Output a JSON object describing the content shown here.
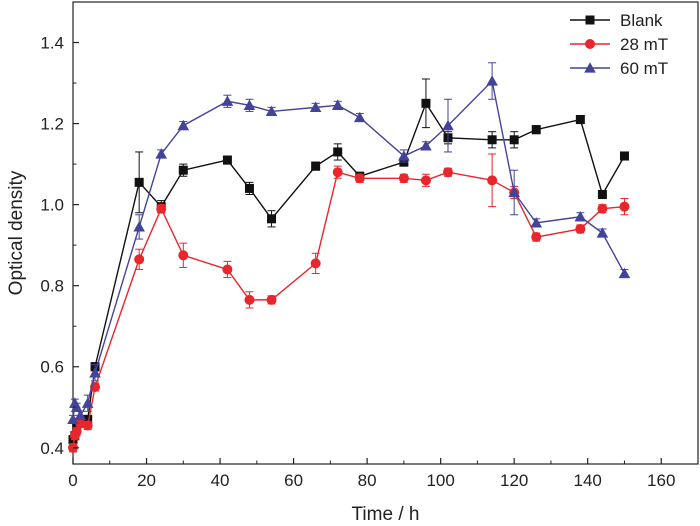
{
  "chart_data": {
    "type": "line",
    "title": "",
    "xlabel": "Time / h",
    "ylabel": "Optical density",
    "xlim": [
      0,
      170
    ],
    "ylim": [
      0.36,
      1.5
    ],
    "xticks": [
      0,
      20,
      40,
      60,
      80,
      100,
      120,
      140,
      160
    ],
    "yticks": [
      0.4,
      0.6,
      0.8,
      1.0,
      1.2,
      1.4
    ],
    "xtick_labels": [
      "0",
      "20",
      "40",
      "60",
      "80",
      "100",
      "120",
      "140",
      "160"
    ],
    "ytick_labels": [
      "0.4",
      "0.6",
      "0.8",
      "1.0",
      "1.2",
      "1.4"
    ],
    "legend_position": "top-right",
    "series": [
      {
        "name": "Blank",
        "color": "#111111",
        "marker": "square",
        "x": [
          0,
          0.5,
          1,
          2,
          4,
          6,
          18,
          24,
          30,
          42,
          48,
          54,
          66,
          72,
          78,
          90,
          96,
          102,
          114,
          120,
          126,
          138,
          144,
          150
        ],
        "y": [
          0.42,
          0.43,
          0.45,
          0.46,
          0.47,
          0.6,
          1.055,
          0.995,
          1.085,
          1.11,
          1.04,
          0.965,
          1.095,
          1.13,
          1.07,
          1.105,
          1.25,
          1.165,
          1.16,
          1.16,
          1.185,
          1.21,
          1.025,
          1.12
        ],
        "err": [
          0.01,
          0.01,
          0.01,
          0.01,
          0.01,
          0.01,
          0.075,
          0.015,
          0.015,
          0.01,
          0.015,
          0.02,
          0.01,
          0.02,
          0.01,
          0.01,
          0.06,
          0.015,
          0.02,
          0.02,
          0.01,
          0.01,
          0.01,
          0.01
        ]
      },
      {
        "name": "28 mT",
        "color": "#e8262b",
        "marker": "circle",
        "x": [
          0,
          0.5,
          1,
          2,
          4,
          6,
          18,
          24,
          30,
          42,
          48,
          54,
          66,
          72,
          78,
          90,
          96,
          102,
          114,
          120,
          126,
          138,
          144,
          150
        ],
        "y": [
          0.4,
          0.43,
          0.44,
          0.46,
          0.455,
          0.55,
          0.865,
          0.99,
          0.875,
          0.84,
          0.765,
          0.765,
          0.855,
          1.08,
          1.065,
          1.065,
          1.06,
          1.08,
          1.06,
          1.03,
          0.92,
          0.94,
          0.99,
          0.995
        ],
        "err": [
          0.01,
          0.01,
          0.01,
          0.01,
          0.01,
          0.01,
          0.025,
          0.01,
          0.03,
          0.02,
          0.02,
          0.01,
          0.025,
          0.015,
          0.01,
          0.01,
          0.015,
          0.01,
          0.065,
          0.015,
          0.01,
          0.01,
          0.01,
          0.02
        ]
      },
      {
        "name": "60 mT",
        "color": "#44439a",
        "marker": "triangle",
        "x": [
          0,
          0.5,
          1,
          2,
          4,
          6,
          18,
          24,
          30,
          42,
          48,
          54,
          66,
          72,
          78,
          90,
          96,
          102,
          114,
          120,
          126,
          138,
          144,
          150
        ],
        "y": [
          0.47,
          0.51,
          0.5,
          0.48,
          0.51,
          0.585,
          0.945,
          1.125,
          1.195,
          1.255,
          1.245,
          1.23,
          1.24,
          1.245,
          1.215,
          1.12,
          1.145,
          1.195,
          1.305,
          1.03,
          0.955,
          0.97,
          0.93,
          0.83
        ],
        "err": [
          0.01,
          0.01,
          0.01,
          0.01,
          0.02,
          0.02,
          0.03,
          0.01,
          0.01,
          0.015,
          0.015,
          0.01,
          0.01,
          0.01,
          0.01,
          0.015,
          0.01,
          0.065,
          0.045,
          0.055,
          0.01,
          0.01,
          0.01,
          0.01
        ]
      }
    ]
  }
}
